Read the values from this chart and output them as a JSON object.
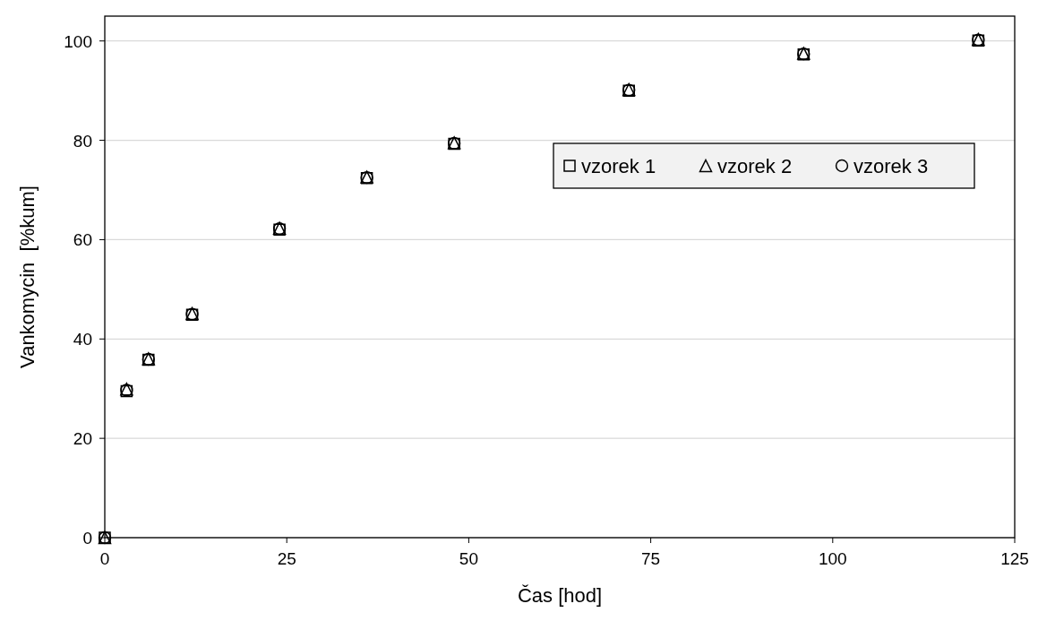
{
  "chart_data": {
    "type": "scatter",
    "xlabel": "Čas [hod]",
    "ylabel": "Vankomycin  [%kum]",
    "x": [
      0,
      3,
      6,
      12,
      24,
      36,
      48,
      72,
      96,
      120
    ],
    "xlim": [
      0,
      125
    ],
    "xticks": [
      0,
      25,
      50,
      75,
      100,
      125
    ],
    "ylim": [
      0,
      105
    ],
    "yticks": [
      0,
      20,
      40,
      60,
      80,
      100
    ],
    "grid": "y",
    "legend": "top right",
    "series": [
      {
        "name": "vzorek 1",
        "color": "#000000",
        "marker": "square",
        "values": [
          0,
          29.5,
          35.8,
          44.9,
          62.0,
          72.4,
          79.3,
          90.0,
          97.3,
          100.1
        ]
      },
      {
        "name": "vzorek 2",
        "color": "#000000",
        "marker": "triangle",
        "values": [
          0,
          29.9,
          36.0,
          45.1,
          62.3,
          72.6,
          79.5,
          90.2,
          97.5,
          100.3
        ]
      },
      {
        "name": "vzorek 3",
        "color": "#000000",
        "marker": "circle",
        "values": [
          0,
          29.7,
          35.9,
          45.0,
          62.2,
          72.5,
          79.4,
          90.1,
          97.4,
          100.2
        ]
      }
    ]
  }
}
